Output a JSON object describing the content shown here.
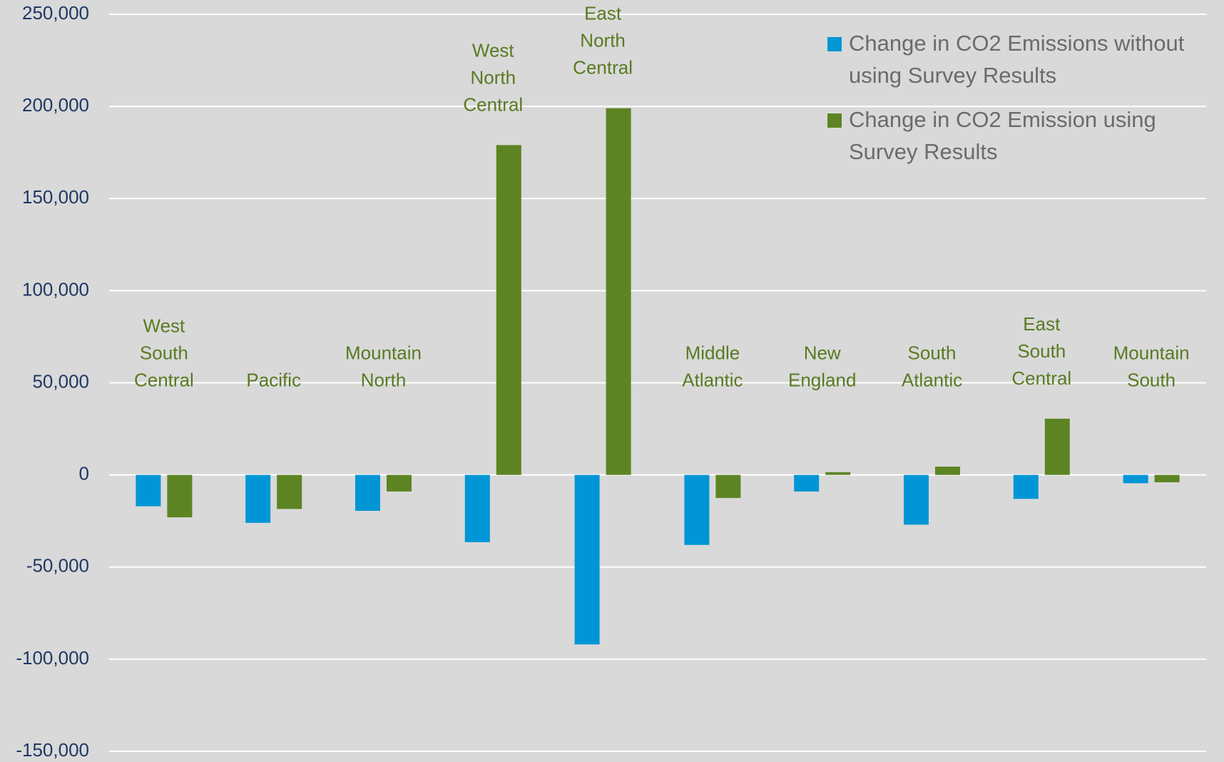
{
  "chart_data": {
    "type": "bar",
    "categories": [
      "West South Central",
      "Pacific",
      "Mountain North",
      "West North Central",
      "East North Central",
      "Middle Atlantic",
      "New England",
      "South Atlantic",
      "East South Central",
      "Mountain South"
    ],
    "series": [
      {
        "name": "Change in CO2 Emissions without using Survey Results",
        "color": "#0096d6",
        "values": [
          -17000,
          -26000,
          -19500,
          -36500,
          -92000,
          -38000,
          -9000,
          -27000,
          -13000,
          -4500
        ]
      },
      {
        "name": "Change in CO2 Emission using Survey Results",
        "color": "#5d8423",
        "values": [
          -23000,
          -18500,
          -9000,
          179000,
          199000,
          -12500,
          1500,
          4500,
          30500,
          -4000
        ]
      }
    ],
    "ylim": [
      -150000,
      250000
    ],
    "yticks": [
      {
        "value": -150000,
        "label": "-150,000"
      },
      {
        "value": -100000,
        "label": "-100,000"
      },
      {
        "value": -50000,
        "label": "-50,000"
      },
      0,
      {
        "value": 50000,
        "label": "50,000"
      },
      {
        "value": 100000,
        "label": "100,000"
      },
      {
        "value": 150000,
        "label": "150,000"
      },
      {
        "value": 200000,
        "label": "200,000"
      },
      {
        "value": 250000,
        "label": "250,000"
      }
    ],
    "grid": true,
    "legend": "top-right"
  }
}
